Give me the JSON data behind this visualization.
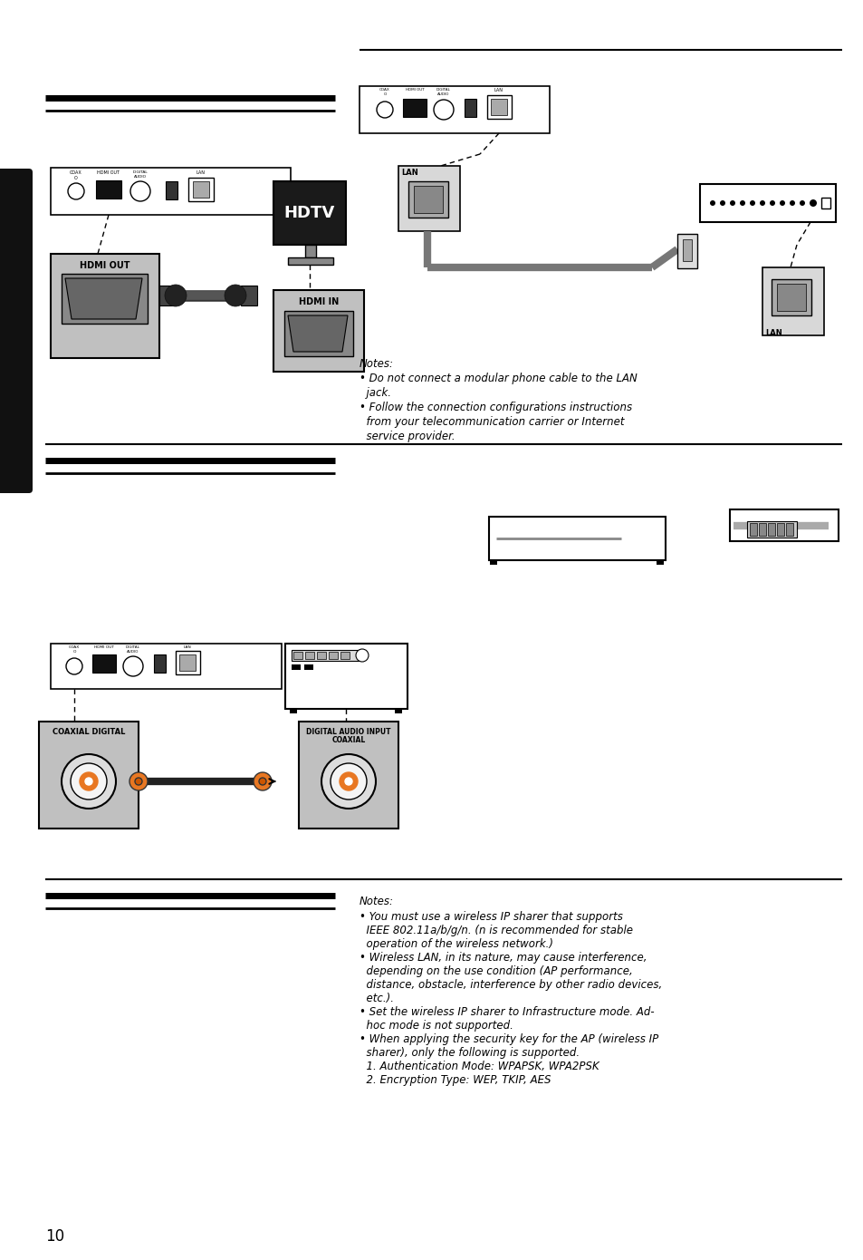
{
  "page_number": "10",
  "background_color": "#ffffff",
  "black_tab_color": "#111111",
  "section_line_color": "#111111",
  "text_color": "#000000",
  "gray_box_color": "#c0c0c0",
  "light_gray": "#d8d8d8",
  "orange_color": "#e87722",
  "dark_gray": "#555555",
  "notes1": [
    "Notes:",
    "• Do not connect a modular phone cable to the LAN",
    "  jack.",
    "• Follow the connection configurations instructions",
    "  from your telecommunication carrier or Internet",
    "  service provider."
  ],
  "notes3": [
    "Notes:",
    "• You must use a wireless IP sharer that supports",
    "  IEEE 802.11a/b/g/n. (n is recommended for stable",
    "  operation of the wireless network.)",
    "• Wireless LAN, in its nature, may cause interference,",
    "  depending on the use condition (AP performance,",
    "  distance, obstacle, interference by other radio devices,",
    "  etc.).",
    "• Set the wireless IP sharer to Infrastructure mode. Ad-",
    "  hoc mode is not supported.",
    "• When applying the security key for the AP (wireless IP",
    "  sharer), only the following is supported.",
    "  1. Authentication Mode: WPAPSK, WPA2PSK",
    "  2. Encryption Type: WEP, TKIP, AES"
  ]
}
